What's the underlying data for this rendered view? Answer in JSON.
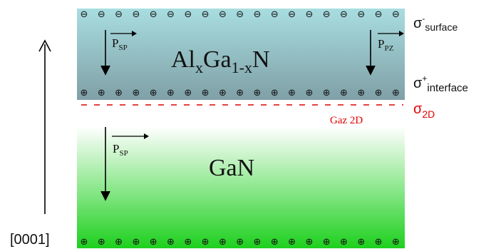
{
  "diagram": {
    "barrier_label": {
      "base1": "Al",
      "sub1": "x",
      "base2": "Ga",
      "sub2": "1-x",
      "base3": "N"
    },
    "buffer_label": "GaN",
    "polarization": {
      "sp_top": {
        "base": "P",
        "sub": "SP"
      },
      "pz_top": {
        "base": "P",
        "sub": "PZ"
      },
      "sp_bottom": {
        "base": "P",
        "sub": "SP"
      }
    },
    "charges": {
      "surface": {
        "base": "σ",
        "sup": "-",
        "sub": "surface"
      },
      "interface": {
        "base": "σ",
        "sup": "+",
        "sub": "interface"
      },
      "gas": {
        "base": "σ",
        "sub": "2D"
      }
    },
    "gas_label": "Gaz 2D",
    "axis_label": "[0001]",
    "symbols": {
      "negative": "⊖",
      "positive": "⊕"
    },
    "colors": {
      "barrier_top": "#a8dde0",
      "barrier_bottom": "#7fa0a6",
      "buffer_top": "#ffffff",
      "buffer_bottom": "#1ed01e",
      "gas_charge": "#e00000"
    }
  }
}
